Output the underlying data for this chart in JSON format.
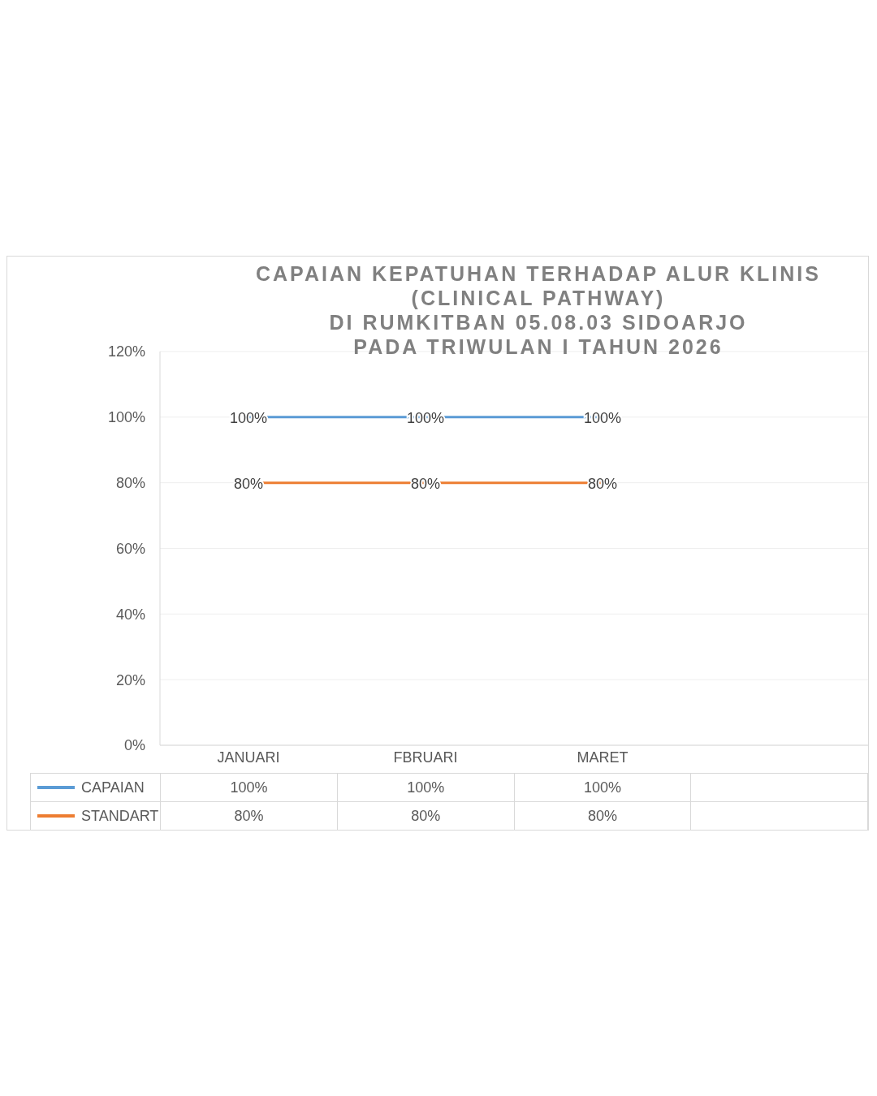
{
  "chart_data": {
    "type": "line",
    "title": "CAPAIAN KEPATUHAN TERHADAP ALUR KLINIS\n(CLINICAL  PATHWAY)\nDI RUMKITBAN 05.08.03 SIDOARJO\nPADA TRIWULAN I TAHUN 2026",
    "categories": [
      "JANUARI",
      "FBRUARI",
      "MARET",
      null
    ],
    "series": [
      {
        "name": "CAPAIAN",
        "color": "#5b9bd5",
        "values": [
          100,
          100,
          100,
          null
        ],
        "value_labels": [
          "100%",
          "100%",
          "100%",
          null
        ]
      },
      {
        "name": "STANDART",
        "color": "#ed7d31",
        "values": [
          80,
          80,
          80,
          null
        ],
        "value_labels": [
          "80%",
          "80%",
          "80%",
          null
        ]
      }
    ],
    "ylim": [
      0,
      120
    ],
    "yticks": [
      {
        "value": 0,
        "label": "0%"
      },
      {
        "value": 20,
        "label": "20%"
      },
      {
        "value": 40,
        "label": "40%"
      },
      {
        "value": 60,
        "label": "60%"
      },
      {
        "value": 80,
        "label": "80%"
      },
      {
        "value": 100,
        "label": "100%"
      },
      {
        "value": 120,
        "label": "120%"
      }
    ],
    "grid": "y",
    "legend": "bottom",
    "marker": "none",
    "line_style": "solid"
  }
}
